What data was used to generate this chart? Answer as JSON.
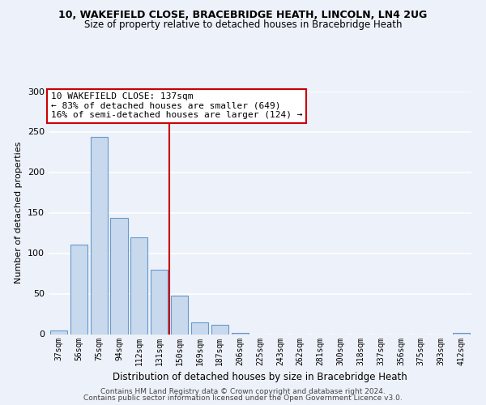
{
  "title1": "10, WAKEFIELD CLOSE, BRACEBRIDGE HEATH, LINCOLN, LN4 2UG",
  "title2": "Size of property relative to detached houses in Bracebridge Heath",
  "xlabel": "Distribution of detached houses by size in Bracebridge Heath",
  "ylabel": "Number of detached properties",
  "bar_labels": [
    "37sqm",
    "56sqm",
    "75sqm",
    "94sqm",
    "112sqm",
    "131sqm",
    "150sqm",
    "169sqm",
    "187sqm",
    "206sqm",
    "225sqm",
    "243sqm",
    "262sqm",
    "281sqm",
    "300sqm",
    "318sqm",
    "337sqm",
    "356sqm",
    "375sqm",
    "393sqm",
    "412sqm"
  ],
  "bar_heights": [
    5,
    111,
    244,
    144,
    120,
    80,
    48,
    15,
    12,
    2,
    0,
    0,
    0,
    0,
    0,
    0,
    0,
    0,
    0,
    0,
    2
  ],
  "bar_color": "#c8d9ee",
  "bar_edge_color": "#6699cc",
  "vline_x_index": 5,
  "vline_color": "#cc0000",
  "annotation_title": "10 WAKEFIELD CLOSE: 137sqm",
  "annotation_line1": "← 83% of detached houses are smaller (649)",
  "annotation_line2": "16% of semi-detached houses are larger (124) →",
  "annotation_box_color": "#ffffff",
  "annotation_box_edge": "#cc0000",
  "ylim": [
    0,
    300
  ],
  "yticks": [
    0,
    50,
    100,
    150,
    200,
    250,
    300
  ],
  "footer1": "Contains HM Land Registry data © Crown copyright and database right 2024.",
  "footer2": "Contains public sector information licensed under the Open Government Licence v3.0.",
  "background_color": "#edf1f9",
  "plot_bg_color": "#edf1f9",
  "grid_color": "#ffffff",
  "title1_fontsize": 9,
  "title2_fontsize": 8.5
}
